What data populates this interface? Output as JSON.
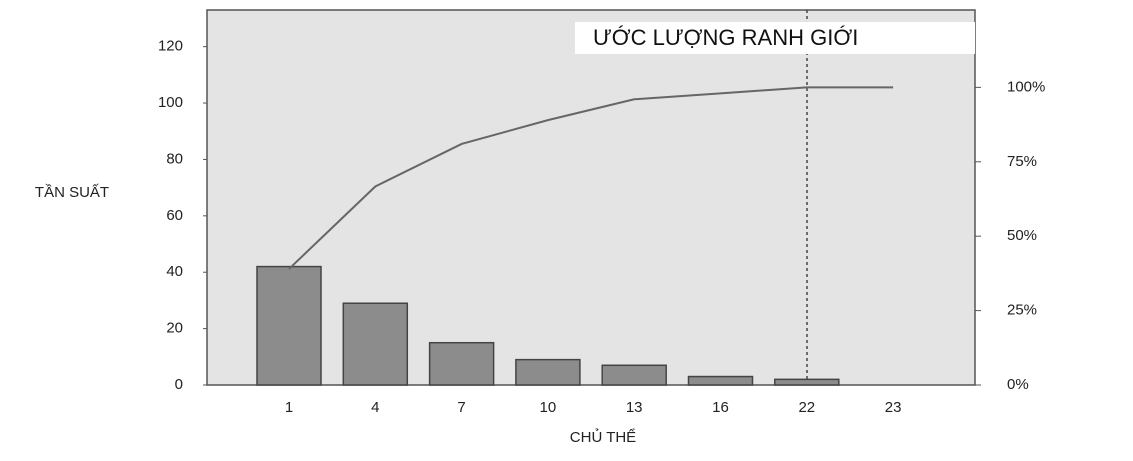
{
  "chart_data": {
    "type": "bar",
    "annotation": "ƯỚC LƯỢNG RANH GIỚI",
    "y_label": "TẦN SUẤT",
    "x_label": "CHỦ THỂ",
    "categories": [
      "1",
      "4",
      "7",
      "10",
      "13",
      "16",
      "22",
      "23"
    ],
    "series": [
      {
        "type": "bar",
        "color": "#8c8c8c",
        "values": [
          42,
          29,
          15,
          9,
          7,
          3,
          2,
          0
        ]
      },
      {
        "type": "line",
        "axis": "y2",
        "color": "#666666",
        "values": [
          39,
          66.7,
          81,
          89,
          96,
          98,
          100,
          100
        ]
      }
    ],
    "ylim": [
      0,
      133
    ],
    "yticks": [
      0,
      20,
      40,
      60,
      80,
      100,
      120
    ],
    "y2lim": [
      0,
      126
    ],
    "y2ticks": [
      {
        "value": 0,
        "label": "0%"
      },
      {
        "value": 25,
        "label": "25%"
      },
      {
        "value": 50,
        "label": "50%"
      },
      {
        "value": 75,
        "label": "75%"
      },
      {
        "value": 100,
        "label": "100%"
      }
    ]
  }
}
